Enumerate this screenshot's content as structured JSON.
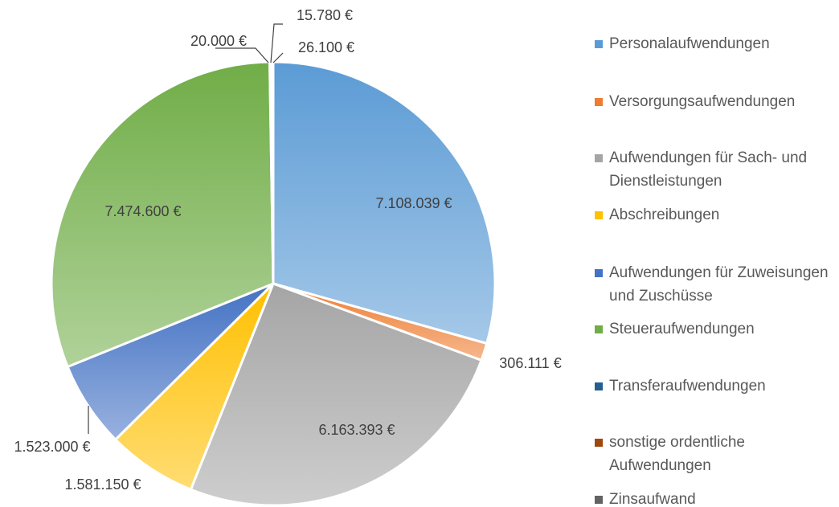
{
  "chart_data": {
    "type": "pie",
    "categories": [
      "Personalaufwendungen",
      "Versorgungsaufwendungen",
      "Aufwendungen für Sach- und Dienstleistungen",
      "Abschreibungen",
      "Aufwendungen für Zuweisungen und Zuschüsse",
      "Steueraufwendungen",
      "Transferaufwendungen",
      "sonstige ordentliche Aufwendungen",
      "Zinsaufwand"
    ],
    "values": [
      7108039,
      306111,
      6163393,
      1581150,
      1523000,
      7474600,
      20000,
      15780,
      26100
    ],
    "value_labels": [
      "7.108.039 €",
      "306.111 €",
      "6.163.393 €",
      "1.581.150 €",
      "1.523.000 €",
      "7.474.600 €",
      "20.000 €",
      "15.780 €",
      "26.100 €"
    ],
    "colors": [
      "#5b9bd5",
      "#ed7d31",
      "#a5a5a5",
      "#ffc000",
      "#4472c4",
      "#70ad47",
      "#255e91",
      "#9e480e",
      "#636363"
    ],
    "legend": "right"
  }
}
